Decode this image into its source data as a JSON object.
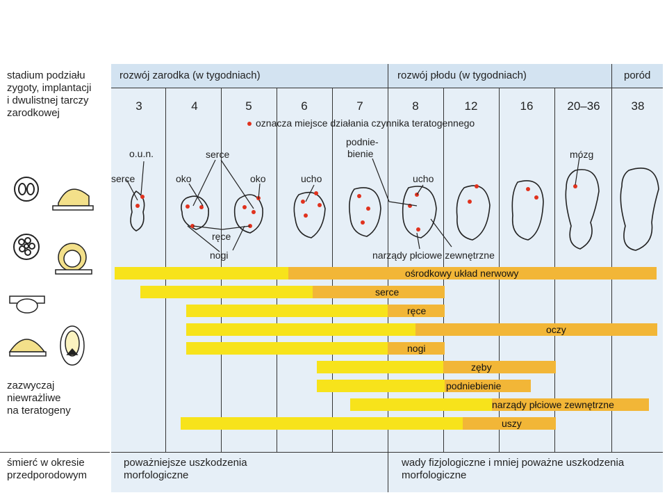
{
  "left": {
    "stage_text": [
      "stadium podziału",
      "zygoty, implantacji",
      "i dwulistnej tarczy",
      "zarodkowej"
    ],
    "insensitive_text": [
      "zazwyczaj",
      "niewrażliwe",
      "na teratogeny"
    ],
    "death_text": [
      "śmierć w okresie",
      "przedporodowym"
    ]
  },
  "header": {
    "embryo": "rozwój zarodka (w tygodniach)",
    "fetus": "rozwój płodu (w tygodniach)",
    "birth": "poród"
  },
  "weeks": [
    "3",
    "4",
    "5",
    "6",
    "7",
    "8",
    "12",
    "16",
    "20–36",
    "38"
  ],
  "legend": "oznacza miejsce działania czynnika teratogennego",
  "labels": {
    "oun": "o.u.n.",
    "serce_left": "serce",
    "serce_top": "serce",
    "oko_left": "oko",
    "oko_right": "oko",
    "rece": "ręce",
    "nogi": "nogi",
    "ucho_6": "ucho",
    "podniebienie": [
      "podnie-",
      "bienie"
    ],
    "ucho_8": "ucho",
    "mozg": "mózg",
    "narzady": "narządy płciowe zewnętrzne"
  },
  "bars": [
    {
      "label": "ośrodkowy układ nerwowy"
    },
    {
      "label": "serce"
    },
    {
      "label": "ręce"
    },
    {
      "label": "oczy"
    },
    {
      "label": "nogi"
    },
    {
      "label": "zęby"
    },
    {
      "label": "podniebienie"
    },
    {
      "label": "narządy płciowe zewnętrzne"
    },
    {
      "label": "uszy"
    }
  ],
  "footer": {
    "embryo": [
      "poważniejsze uszkodzenia",
      "morfologiczne"
    ],
    "fetus": [
      "wady fizjologiczne i mniej poważne uszkodzenia",
      "morfologiczne"
    ]
  },
  "colors": {
    "light_bar": "#f7e31b",
    "dark_bar": "#f2b637",
    "dot": "#e0321e"
  }
}
